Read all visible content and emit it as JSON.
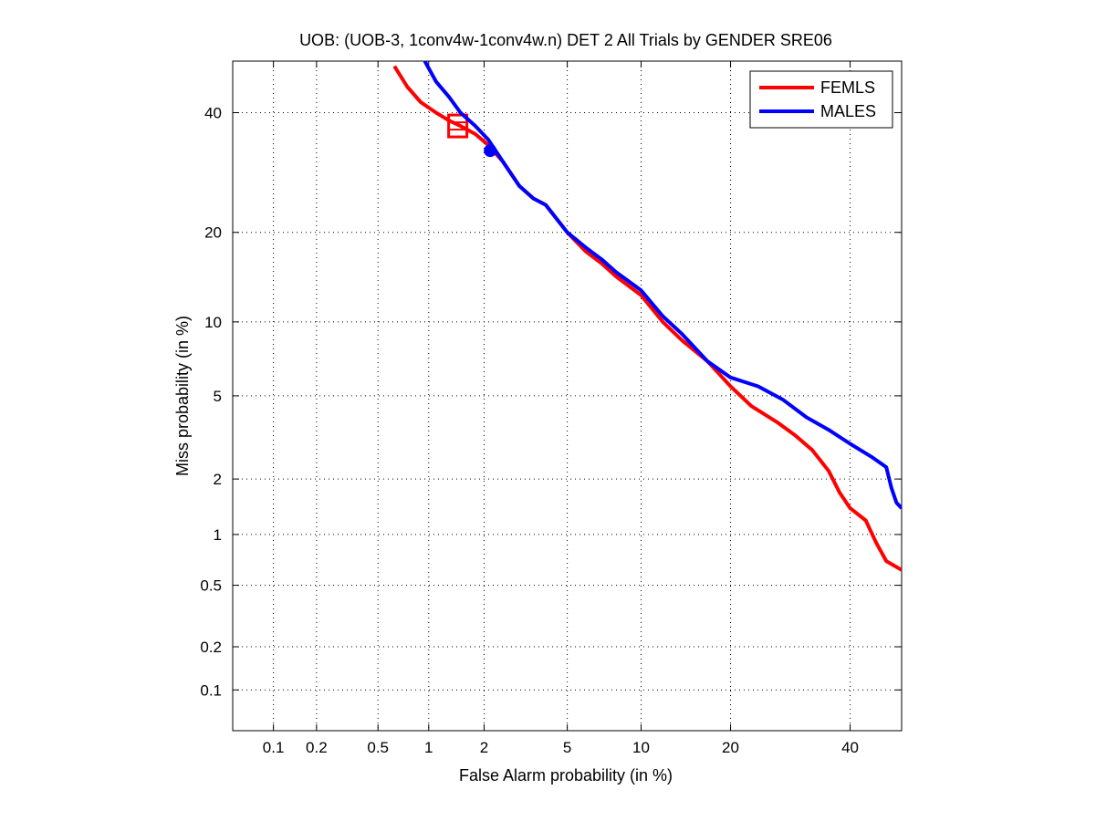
{
  "chart_data": {
    "type": "line",
    "title": "UOB: (UOB-3, 1conv4w-1conv4w.n) DET 2 All Trials by GENDER SRE06",
    "xlabel": "False Alarm probability (in %)",
    "ylabel": "Miss probability (in %)",
    "scale": "normal-deviate (DET)",
    "xlim": [
      0.05,
      50
    ],
    "ylim": [
      0.05,
      50
    ],
    "grid": true,
    "legend_position": "top-right",
    "x_ticks": [
      {
        "value": 0.1,
        "label": "0.1"
      },
      {
        "value": 0.2,
        "label": "0.2"
      },
      {
        "value": 0.5,
        "label": "0.5"
      },
      {
        "value": 1,
        "label": "1"
      },
      {
        "value": 2,
        "label": "2"
      },
      {
        "value": 5,
        "label": "5"
      },
      {
        "value": 10,
        "label": "10"
      },
      {
        "value": 20,
        "label": "20"
      },
      {
        "value": 40,
        "label": "40"
      }
    ],
    "y_ticks": [
      {
        "value": 0.1,
        "label": "0.1"
      },
      {
        "value": 0.2,
        "label": "0.2"
      },
      {
        "value": 0.5,
        "label": "0.5"
      },
      {
        "value": 1,
        "label": "1"
      },
      {
        "value": 2,
        "label": "2"
      },
      {
        "value": 5,
        "label": "5"
      },
      {
        "value": 10,
        "label": "10"
      },
      {
        "value": 20,
        "label": "20"
      },
      {
        "value": 40,
        "label": "40"
      }
    ],
    "series": [
      {
        "name": "FEMLS",
        "color": "#ff0000",
        "points": [
          [
            0.63,
            49
          ],
          [
            0.75,
            45
          ],
          [
            0.9,
            42
          ],
          [
            1.1,
            40
          ],
          [
            1.3,
            38.5
          ],
          [
            1.5,
            37.5
          ],
          [
            1.8,
            36
          ],
          [
            2.1,
            34
          ],
          [
            2.5,
            31
          ],
          [
            3.0,
            27
          ],
          [
            3.5,
            25
          ],
          [
            4.0,
            24
          ],
          [
            5.0,
            20
          ],
          [
            6.0,
            17.5
          ],
          [
            7.0,
            16
          ],
          [
            8.0,
            14.5
          ],
          [
            10,
            12.5
          ],
          [
            12,
            10
          ],
          [
            14,
            8.5
          ],
          [
            17,
            7
          ],
          [
            20,
            5.5
          ],
          [
            23,
            4.5
          ],
          [
            27,
            3.8
          ],
          [
            30,
            3.3
          ],
          [
            33,
            2.8
          ],
          [
            36,
            2.2
          ],
          [
            38,
            1.7
          ],
          [
            40,
            1.4
          ],
          [
            43,
            1.2
          ],
          [
            45,
            0.9
          ],
          [
            47,
            0.7
          ],
          [
            50,
            0.62
          ]
        ],
        "marker": {
          "type": "square",
          "x": 1.45,
          "y": 37.5
        }
      },
      {
        "name": "MALES",
        "color": "#0000ff",
        "points": [
          [
            0.95,
            50
          ],
          [
            1.1,
            46
          ],
          [
            1.3,
            43
          ],
          [
            1.5,
            40
          ],
          [
            1.8,
            37.5
          ],
          [
            2.1,
            35
          ],
          [
            2.5,
            31
          ],
          [
            3.0,
            27
          ],
          [
            3.5,
            25
          ],
          [
            4.0,
            24
          ],
          [
            5.0,
            20
          ],
          [
            6.0,
            18
          ],
          [
            7.0,
            16.5
          ],
          [
            8.0,
            15
          ],
          [
            10,
            13
          ],
          [
            12,
            10.5
          ],
          [
            14,
            9
          ],
          [
            17,
            7
          ],
          [
            20,
            6
          ],
          [
            24,
            5.5
          ],
          [
            28,
            4.8
          ],
          [
            32,
            4
          ],
          [
            36,
            3.5
          ],
          [
            40,
            3
          ],
          [
            44,
            2.6
          ],
          [
            47,
            2.3
          ],
          [
            48,
            1.8
          ],
          [
            49,
            1.5
          ],
          [
            50,
            1.4
          ]
        ],
        "marker": {
          "type": "circle",
          "x": 2.15,
          "y": 33
        }
      }
    ]
  }
}
